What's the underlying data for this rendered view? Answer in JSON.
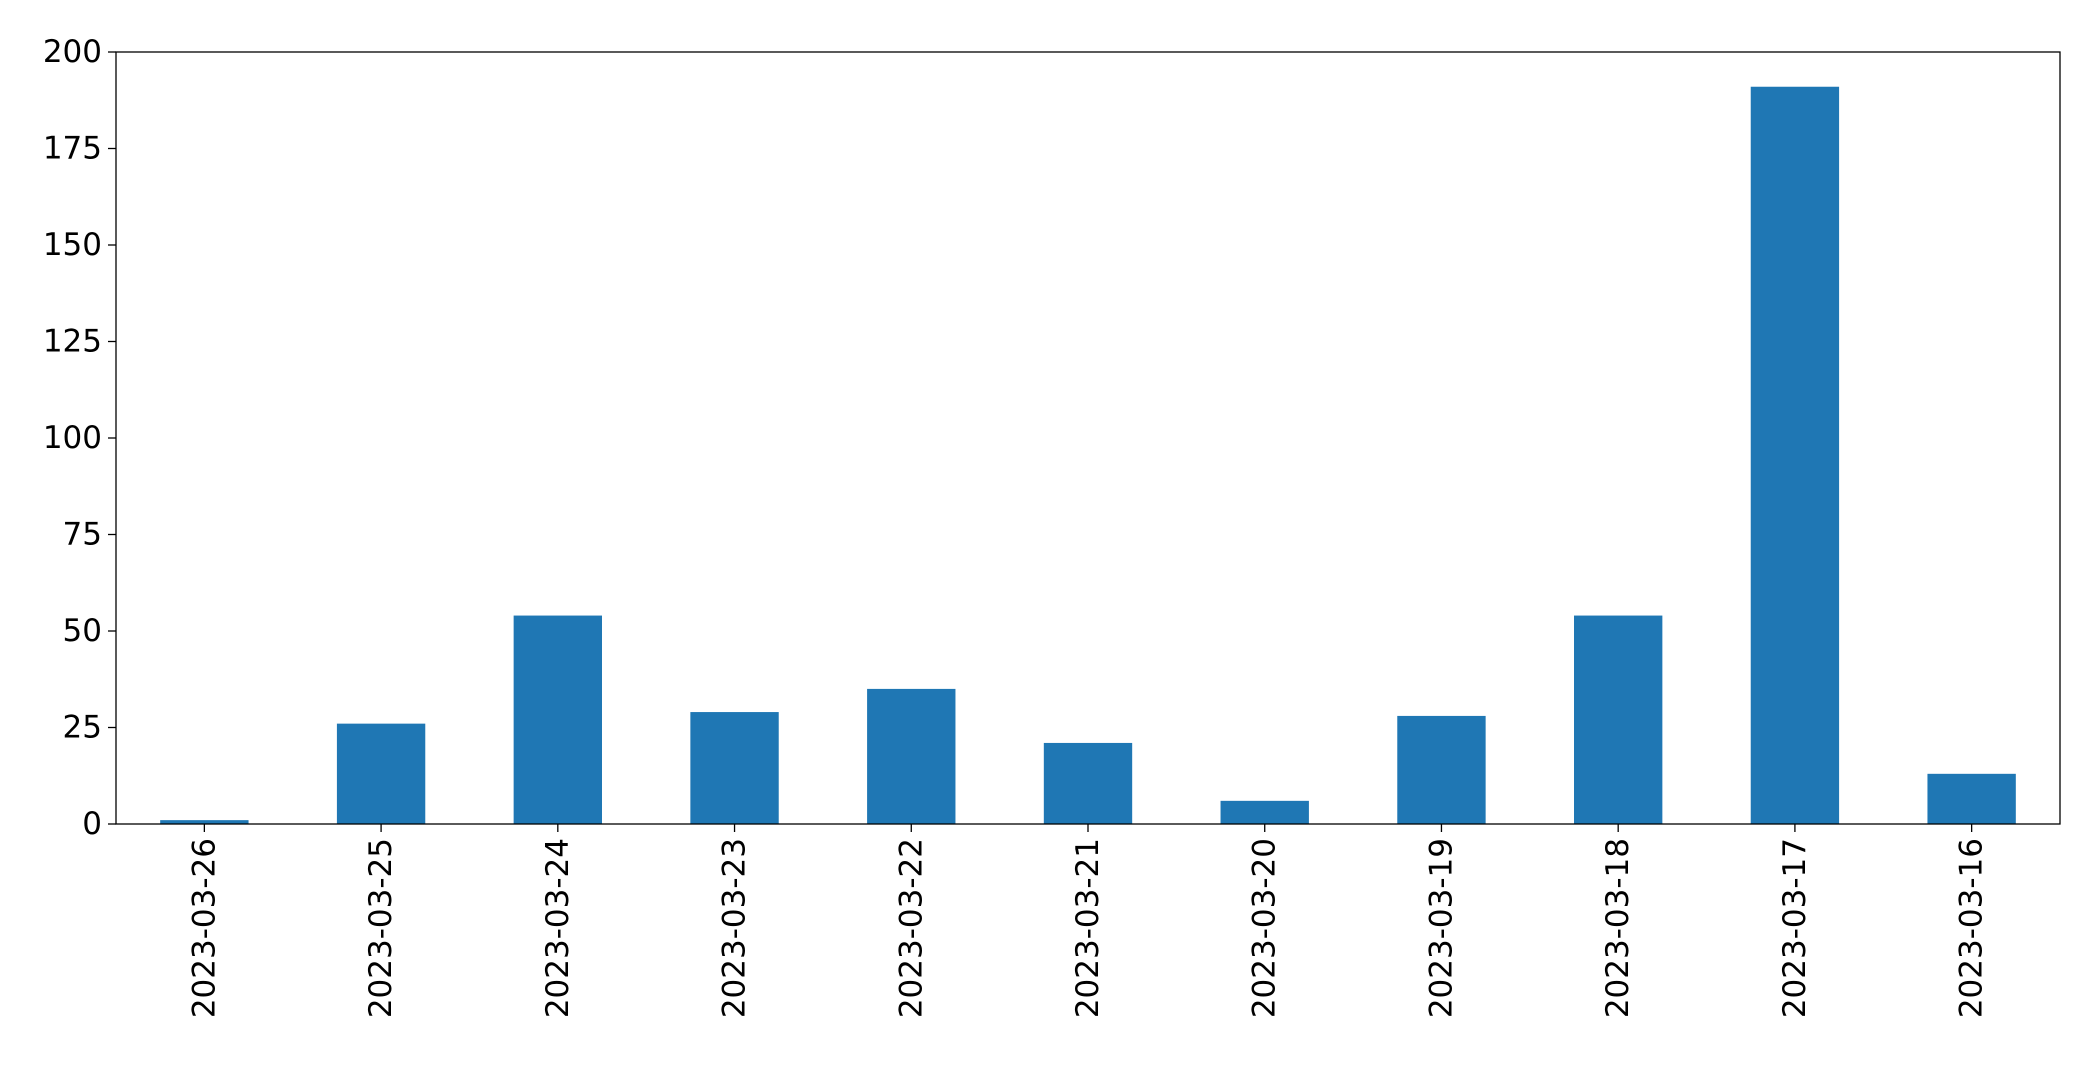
{
  "chart_data": {
    "type": "bar",
    "title": "",
    "xlabel": "",
    "ylabel": "",
    "categories": [
      "2023-03-26",
      "2023-03-25",
      "2023-03-24",
      "2023-03-23",
      "2023-03-22",
      "2023-03-21",
      "2023-03-20",
      "2023-03-19",
      "2023-03-18",
      "2023-03-17",
      "2023-03-16"
    ],
    "values": [
      1,
      26,
      54,
      29,
      35,
      21,
      6,
      28,
      54,
      191,
      13
    ],
    "ylim": [
      0,
      200
    ],
    "yticks": [
      0,
      25,
      50,
      75,
      100,
      125,
      150,
      175,
      200
    ],
    "grid": false,
    "legend": "none",
    "bar_color": "#1f77b4"
  }
}
